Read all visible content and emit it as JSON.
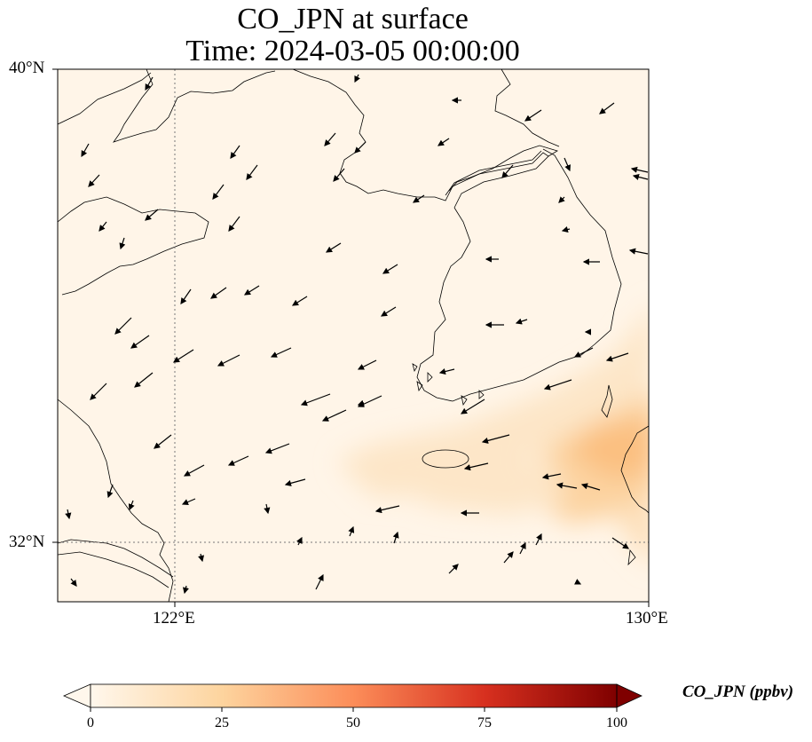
{
  "title": {
    "line1": "CO_JPN at surface",
    "line2": "Time: 2024-03-05 00:00:00"
  },
  "axes": {
    "lat_labels": [
      "40°N",
      "32°N"
    ],
    "lon_labels": [
      "122°E",
      "130°E"
    ],
    "lat_range": [
      31,
      40
    ],
    "lon_range": [
      120,
      130
    ],
    "gridlines": "dotted at 122°E and 32°N"
  },
  "colorbar": {
    "label": "CO_JPN (ppbv)",
    "ticks": [
      "0",
      "25",
      "50",
      "75",
      "100"
    ],
    "range": [
      0,
      100
    ],
    "extend": "both",
    "colormap": "OrRd",
    "colors": [
      "#fff7ec",
      "#fdd49e",
      "#fc8d59",
      "#d7301f",
      "#7f0000"
    ]
  },
  "colors": {
    "background_field": "#fff5e8",
    "plume": "#fdbf7e",
    "coastline": "#000000"
  }
}
